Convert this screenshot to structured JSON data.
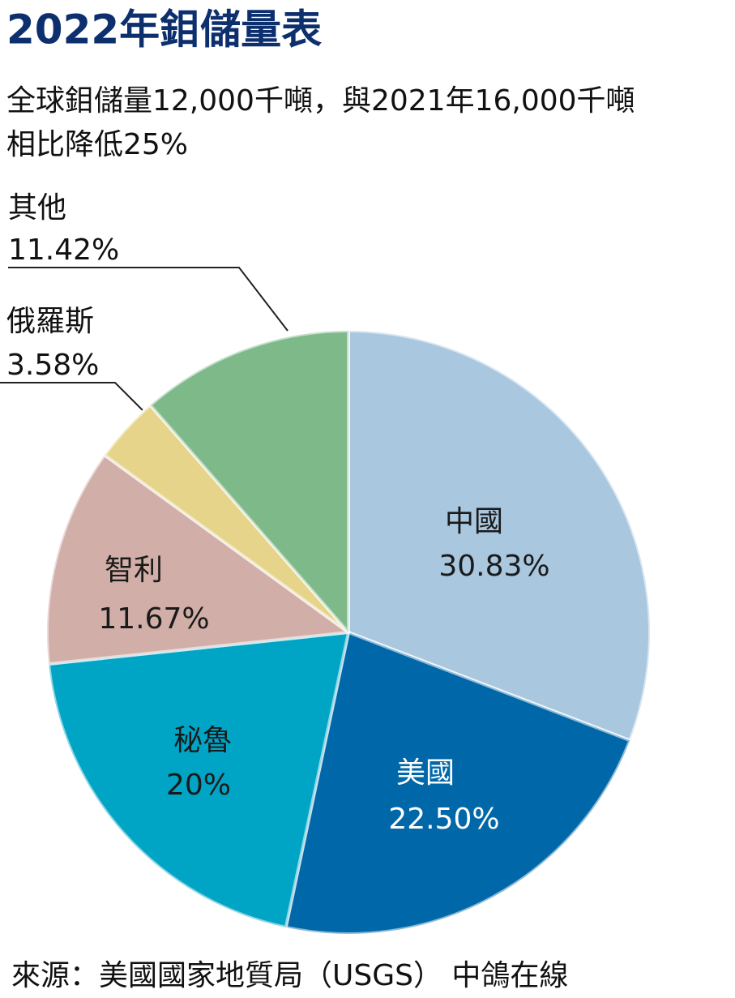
{
  "chart_data": {
    "type": "pie",
    "title": "2022年鉬儲量表",
    "subtitle": [
      "全球鉬儲量12,000千噸，與2021年16,000千噸",
      "相比降低25%"
    ],
    "categories": [
      "中國",
      "美國",
      "秘魯",
      "智利",
      "俄羅斯",
      "其他"
    ],
    "values": [
      30.83,
      22.5,
      20,
      11.67,
      3.58,
      11.42
    ],
    "value_labels": [
      "30.83%",
      "22.50%",
      "20%",
      "11.67%",
      "3.58%",
      "11.42%"
    ],
    "colors": [
      "#a9c7df",
      "#0067a9",
      "#00a5c6",
      "#d1aea8",
      "#e5d489",
      "#7eb98a"
    ],
    "source": "來源：美國國家地質局（USGS） 中鴿在線"
  }
}
